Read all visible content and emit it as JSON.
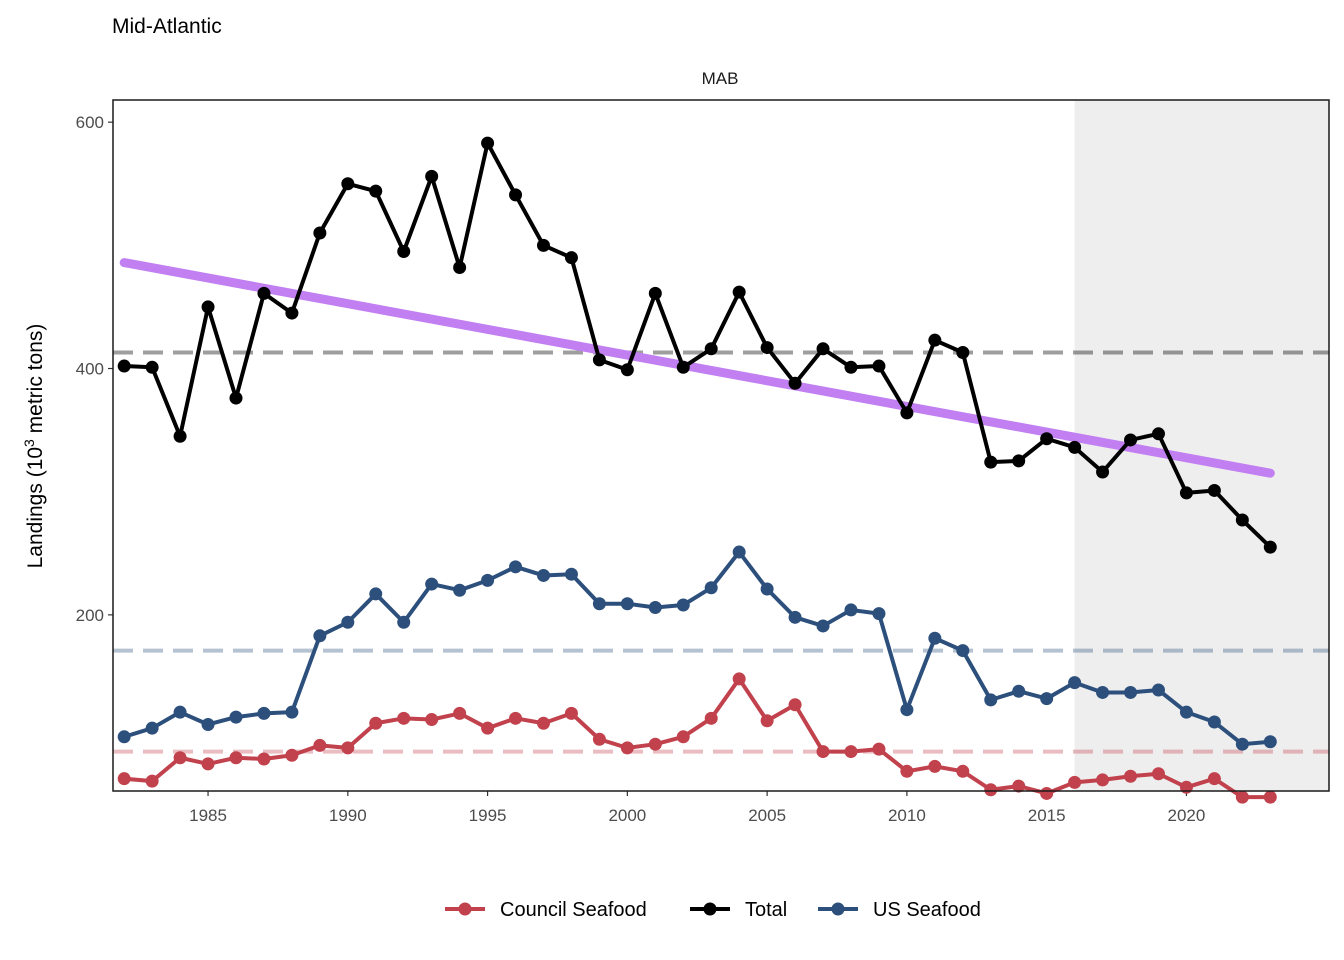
{
  "title": "Mid-Atlantic",
  "chart_data": {
    "type": "line",
    "title": "Mid-Atlantic",
    "facet_label": "MAB",
    "xlabel": "",
    "ylabel_prefix": "Landings (10",
    "ylabel_superscript": "3",
    "ylabel_suffix": " metric tons)",
    "xlim": [
      1981.6,
      2025.1
    ],
    "ylim": [
      57,
      618
    ],
    "x_ticks": [
      1985,
      1990,
      1995,
      2000,
      2005,
      2010,
      2015,
      2020
    ],
    "y_ticks": [
      200,
      400,
      600
    ],
    "shaded_region": {
      "x_from": 2016,
      "x_to": 2025.1,
      "color": "#eeeeee"
    },
    "x": [
      1982,
      1983,
      1984,
      1985,
      1986,
      1987,
      1988,
      1989,
      1990,
      1991,
      1992,
      1993,
      1994,
      1995,
      1996,
      1997,
      1998,
      1999,
      2000,
      2001,
      2002,
      2003,
      2004,
      2005,
      2006,
      2007,
      2008,
      2009,
      2010,
      2011,
      2012,
      2013,
      2014,
      2015,
      2016,
      2017,
      2018,
      2019,
      2020,
      2021,
      2022,
      2023
    ],
    "series": [
      {
        "name": "Council Seafood",
        "color": "#c1424d",
        "values": [
          67,
          65,
          84,
          79,
          84,
          83,
          86,
          94,
          92,
          112,
          116,
          115,
          120,
          108,
          116,
          112,
          120,
          99,
          92,
          95,
          101,
          116,
          148,
          114,
          127,
          89,
          89,
          91,
          73,
          77,
          73,
          58,
          61,
          55,
          64,
          66,
          69,
          71,
          60,
          67,
          52,
          52
        ],
        "mean": 89
      },
      {
        "name": "Total",
        "color": "#000000",
        "values": [
          402,
          401,
          345,
          450,
          376,
          461,
          445,
          510,
          550,
          544,
          495,
          556,
          482,
          583,
          541,
          500,
          490,
          407,
          399,
          461,
          401,
          416,
          462,
          417,
          388,
          416,
          401,
          402,
          364,
          423,
          413,
          324,
          325,
          343,
          336,
          316,
          342,
          347,
          299,
          301,
          277,
          255
        ],
        "mean": 413
      },
      {
        "name": "US Seafood",
        "color": "#2c4f7c",
        "values": [
          101,
          108,
          121,
          111,
          117,
          120,
          121,
          183,
          194,
          217,
          194,
          225,
          220,
          228,
          239,
          232,
          233,
          209,
          209,
          206,
          208,
          222,
          251,
          221,
          198,
          191,
          204,
          201,
          123,
          181,
          171,
          131,
          138,
          132,
          145,
          137,
          137,
          139,
          121,
          113,
          95,
          97
        ],
        "mean": 171
      }
    ],
    "trend": {
      "color": "#c27ff2",
      "x": [
        1982,
        2023
      ],
      "y": [
        486,
        315
      ]
    },
    "legend": {
      "position": "bottom",
      "entries": [
        "Council Seafood",
        "Total",
        "US Seafood"
      ]
    }
  }
}
